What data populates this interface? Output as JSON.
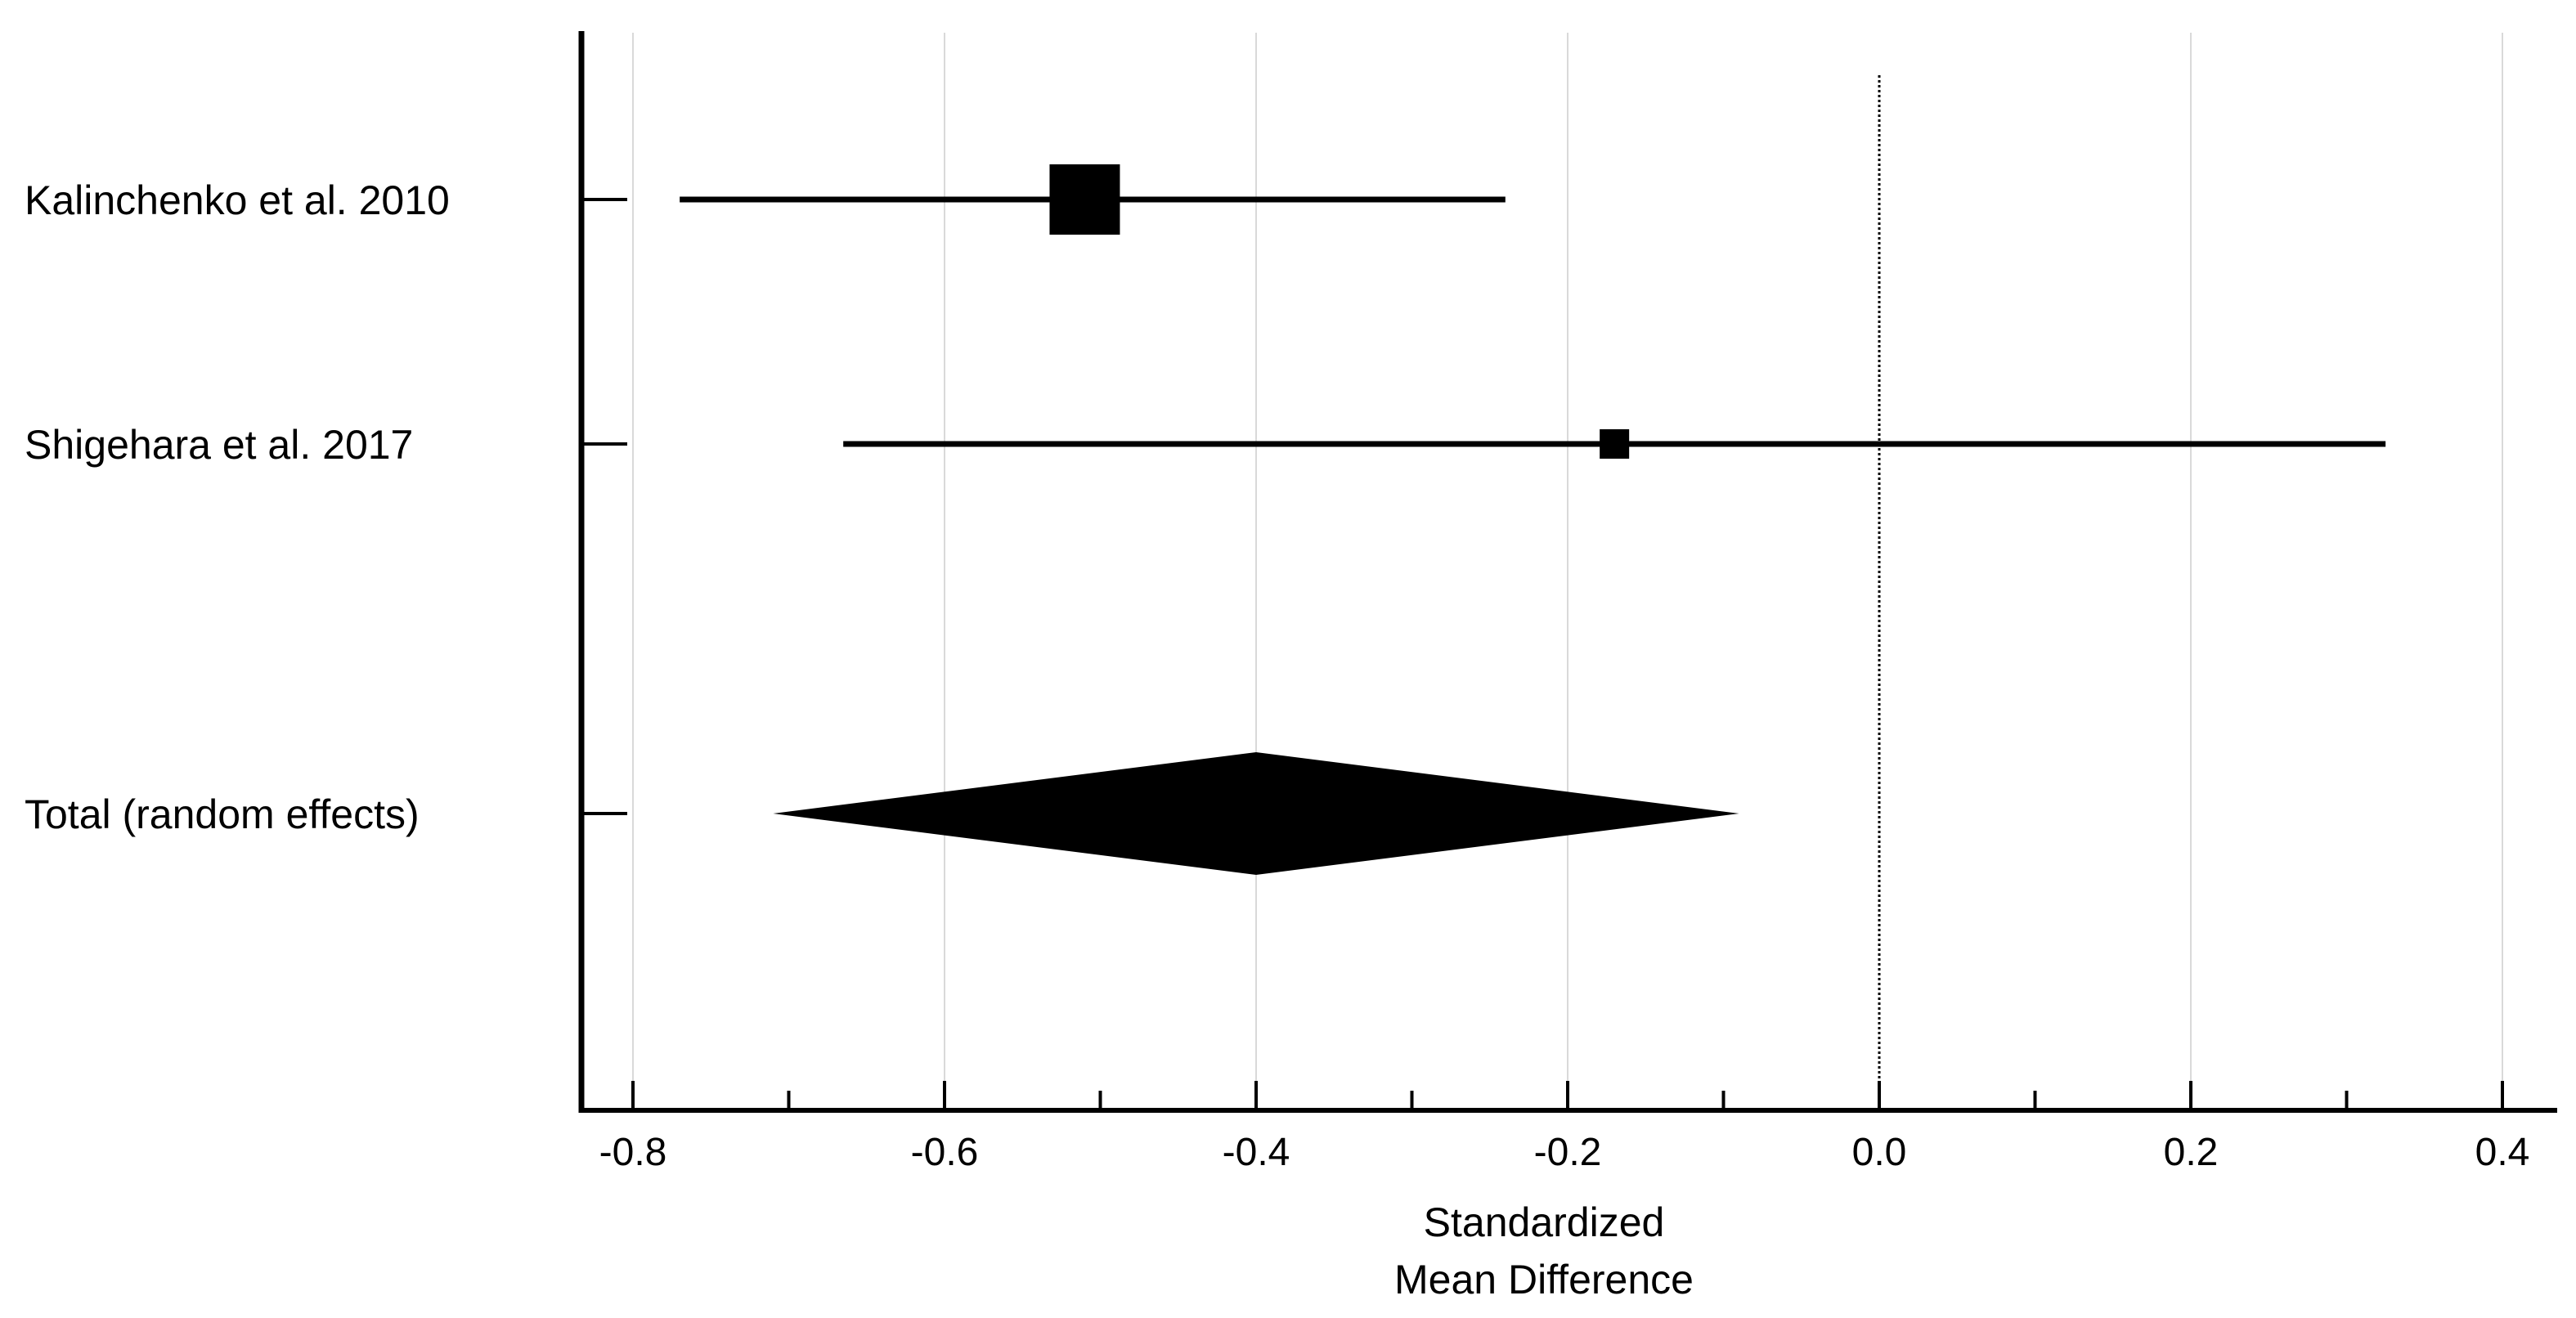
{
  "chart_data": {
    "type": "forest",
    "xlabel_lines": [
      "Standardized",
      "Mean Difference"
    ],
    "xlim": [
      -0.83,
      0.43
    ],
    "ticks": [
      {
        "value": -0.8,
        "label": "-0.8"
      },
      {
        "value": -0.6,
        "label": "-0.6"
      },
      {
        "value": -0.4,
        "label": "-0.4"
      },
      {
        "value": -0.2,
        "label": "-0.2"
      },
      {
        "value": 0.0,
        "label": "0.0"
      },
      {
        "value": 0.2,
        "label": "0.2"
      },
      {
        "value": 0.4,
        "label": "0.4"
      }
    ],
    "minor_ticks": [
      -0.7,
      -0.5,
      -0.3,
      -0.1,
      0.1,
      0.3
    ],
    "grid": true,
    "reference_line": 0.0,
    "studies": [
      {
        "label": "Kalinchenko et al. 2010",
        "estimate": -0.51,
        "ci_low": -0.77,
        "ci_high": -0.24,
        "weight_relative": 1.0
      },
      {
        "label": "Shigehara et al. 2017",
        "estimate": -0.17,
        "ci_low": -0.665,
        "ci_high": 0.325,
        "weight_relative": 0.4
      }
    ],
    "pooled": {
      "label": "Total (random effects)",
      "estimate": -0.4,
      "ci_low": -0.71,
      "ci_high": -0.09
    }
  },
  "colors": {
    "ink": "#000000",
    "grid": "#d9d9d9",
    "background": "#ffffff"
  }
}
